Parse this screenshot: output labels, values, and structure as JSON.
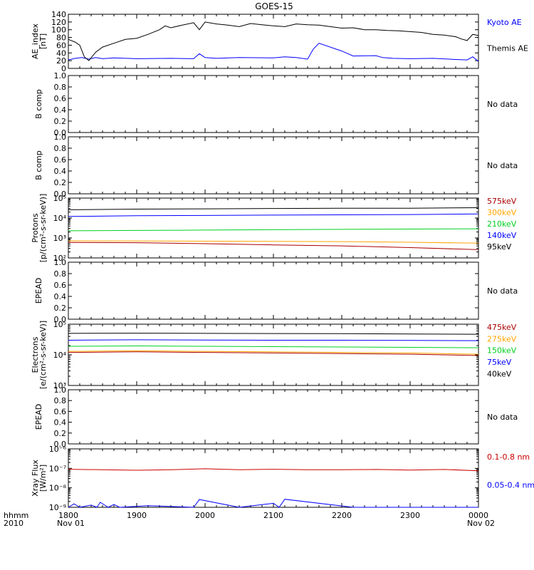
{
  "title": "GOES-15",
  "colors": {
    "black": "#000000",
    "blue": "#0000ff",
    "red": "#cc0000",
    "orange": "#ffa500",
    "green": "#00d020",
    "dark_red": "#aa0000"
  },
  "time_axis": {
    "ticks": [
      "1800",
      "1900",
      "2000",
      "2100",
      "2200",
      "2300",
      "0000"
    ],
    "minor_ticks_per_major": 6,
    "left_label_line1": "hhmm",
    "left_label_line2": "2010",
    "date_start": "Nov 01",
    "date_end": "Nov 02"
  },
  "chart_data": [
    {
      "type": "line",
      "panel": "ae",
      "ylabel": [
        "AE_index",
        "[nT]"
      ],
      "yscale": "linear",
      "ylim": [
        0,
        140
      ],
      "yticks": [
        "0",
        "20",
        "40",
        "60",
        "80",
        "100",
        "120",
        "140"
      ],
      "x_range": [
        "18:00 Nov 01",
        "00:00 Nov 02"
      ],
      "series": [
        {
          "name": "Kyoto AE",
          "color": "#0000ff",
          "x_minutes": [
            0,
            6,
            12,
            18,
            24,
            30,
            40,
            60,
            90,
            110,
            115,
            120,
            130,
            150,
            180,
            190,
            200,
            210,
            215,
            220,
            240,
            250,
            270,
            276,
            285,
            300,
            320,
            340,
            350,
            355,
            360
          ],
          "values": [
            22,
            26,
            28,
            24,
            28,
            25,
            27,
            25,
            26,
            25,
            38,
            28,
            26,
            28,
            27,
            30,
            28,
            24,
            50,
            65,
            45,
            32,
            33,
            28,
            26,
            25,
            26,
            23,
            22,
            30,
            18
          ]
        },
        {
          "name": "Themis AE",
          "color": "#000000",
          "x_minutes": [
            0,
            6,
            10,
            14,
            18,
            24,
            30,
            40,
            50,
            60,
            70,
            80,
            85,
            90,
            100,
            110,
            115,
            120,
            130,
            140,
            150,
            160,
            170,
            180,
            190,
            200,
            210,
            220,
            230,
            240,
            250,
            260,
            270,
            280,
            290,
            300,
            310,
            320,
            330,
            340,
            345,
            350,
            355,
            360
          ],
          "values": [
            75,
            68,
            60,
            30,
            20,
            42,
            55,
            65,
            75,
            78,
            88,
            100,
            110,
            105,
            112,
            118,
            100,
            120,
            115,
            112,
            108,
            116,
            113,
            110,
            108,
            115,
            113,
            112,
            108,
            104,
            105,
            100,
            100,
            98,
            97,
            95,
            93,
            88,
            86,
            82,
            76,
            72,
            88,
            85
          ]
        }
      ],
      "legend": [
        "Kyoto AE",
        "Themis AE"
      ]
    },
    {
      "type": "line",
      "panel": "bcomp1",
      "ylabel": [
        "B comp"
      ],
      "ylim": [
        0,
        1.0
      ],
      "yticks": [
        "0.0",
        "0.2",
        "0.4",
        "0.6",
        "0.8",
        "1.0"
      ],
      "status": "No data",
      "series": []
    },
    {
      "type": "line",
      "panel": "bcomp2",
      "ylabel": [
        "B comp"
      ],
      "ylim": [
        0,
        1.0
      ],
      "yticks": [
        "0.0",
        "0.2",
        "0.4",
        "0.6",
        "0.8",
        "1.0"
      ],
      "status": "No data",
      "series": []
    },
    {
      "type": "line",
      "panel": "protons",
      "ylabel": [
        "Protons",
        "[p/(cm²-s-sr-keV)]"
      ],
      "yscale": "log",
      "ylim": [
        100,
        100000
      ],
      "yticks": [
        "10²",
        "10³",
        "10⁴",
        "10⁵"
      ],
      "series": [
        {
          "name": "575keV",
          "color": "#aa0000",
          "x_minutes": [
            0,
            60,
            120,
            180,
            240,
            300,
            360
          ],
          "values": [
            600,
            580,
            520,
            450,
            400,
            330,
            260
          ]
        },
        {
          "name": "300keV",
          "color": "#ffa500",
          "x_minutes": [
            0,
            60,
            120,
            180,
            240,
            300,
            360
          ],
          "values": [
            720,
            700,
            690,
            680,
            660,
            610,
            550
          ]
        },
        {
          "name": "210keV",
          "color": "#00d020",
          "x_minutes": [
            0,
            60,
            120,
            180,
            240,
            300,
            360
          ],
          "values": [
            2300,
            2400,
            2500,
            2600,
            2700,
            2800,
            2900
          ]
        },
        {
          "name": "140keV",
          "color": "#0000ff",
          "x_minutes": [
            0,
            60,
            120,
            180,
            240,
            300,
            360
          ],
          "values": [
            12000,
            13000,
            13500,
            14000,
            14500,
            15000,
            16000
          ]
        },
        {
          "name": "95keV",
          "color": "#000000",
          "x_minutes": [
            0,
            60,
            120,
            180,
            240,
            300,
            360
          ],
          "values": [
            26000,
            28000,
            29000,
            30000,
            31000,
            31000,
            33000
          ]
        }
      ],
      "legend": [
        "575keV",
        "300keV",
        "210keV",
        "140keV",
        "95keV"
      ]
    },
    {
      "type": "line",
      "panel": "epead1",
      "ylabel": [
        "EPEAD"
      ],
      "ylim": [
        0,
        1.0
      ],
      "yticks": [
        "0.0",
        "0.2",
        "0.4",
        "0.6",
        "0.8",
        "1.0"
      ],
      "status": "No data",
      "series": []
    },
    {
      "type": "line",
      "panel": "electrons",
      "ylabel": [
        "Electrons",
        "[e/(cm²-s-sr-keV)]"
      ],
      "yscale": "log",
      "ylim": [
        1000,
        100000
      ],
      "yticks": [
        "10³",
        "10⁴",
        "10⁵"
      ],
      "series": [
        {
          "name": "475keV",
          "color": "#aa0000",
          "x_minutes": [
            0,
            60,
            120,
            180,
            240,
            300,
            360
          ],
          "values": [
            12000,
            12500,
            12000,
            11500,
            11000,
            10500,
            9500
          ]
        },
        {
          "name": "275keV",
          "color": "#ffa500",
          "x_minutes": [
            0,
            60,
            120,
            180,
            240,
            300,
            360
          ],
          "values": [
            13000,
            13500,
            13000,
            12500,
            12000,
            11500,
            10500
          ]
        },
        {
          "name": "150keV",
          "color": "#00d020",
          "x_minutes": [
            0,
            60,
            120,
            180,
            240,
            300,
            360
          ],
          "values": [
            19000,
            19500,
            19000,
            18500,
            18000,
            17500,
            17000
          ]
        },
        {
          "name": "75keV",
          "color": "#0000ff",
          "x_minutes": [
            0,
            60,
            120,
            180,
            240,
            300,
            360
          ],
          "values": [
            30000,
            31000,
            30500,
            30000,
            30000,
            29500,
            29000
          ]
        },
        {
          "name": "40keV",
          "color": "#000000",
          "x_minutes": [
            0,
            60,
            120,
            180,
            240,
            300,
            360
          ],
          "values": [
            50000,
            51000,
            50000,
            49500,
            49000,
            48000,
            47000
          ]
        }
      ],
      "legend": [
        "475keV",
        "275keV",
        "150keV",
        "75keV",
        "40keV"
      ]
    },
    {
      "type": "line",
      "panel": "epead2",
      "ylabel": [
        "EPEAD"
      ],
      "ylim": [
        0,
        1.0
      ],
      "yticks": [
        "0.0",
        "0.2",
        "0.4",
        "0.6",
        "0.8",
        "1.0"
      ],
      "status": "No data",
      "series": []
    },
    {
      "type": "line",
      "panel": "xray",
      "ylabel": [
        "Xray Flux",
        "[W/m²]"
      ],
      "yscale": "log",
      "ylim": [
        1e-09,
        1e-06
      ],
      "yticks": [
        "10⁻⁹",
        "10⁻⁸",
        "10⁻⁷",
        "10⁻⁶"
      ],
      "series": [
        {
          "name": "0.1-0.8 nm",
          "color": "#cc0000",
          "x_minutes": [
            0,
            30,
            60,
            90,
            120,
            150,
            180,
            210,
            240,
            270,
            300,
            330,
            360
          ],
          "values": [
            9e-08,
            8.5e-08,
            8e-08,
            8.5e-08,
            9.5e-08,
            8.5e-08,
            9e-08,
            8.5e-08,
            8.5e-08,
            8.8e-08,
            8.2e-08,
            8.8e-08,
            7.5e-08
          ]
        },
        {
          "name": "0.05-0.4 nm",
          "color": "#0000ff",
          "x_minutes": [
            0,
            5,
            10,
            20,
            25,
            28,
            35,
            40,
            45,
            70,
            110,
            115,
            150,
            180,
            185,
            190,
            250,
            360
          ],
          "values": [
            1e-09,
            1.5e-09,
            1e-09,
            1.3e-09,
            1e-09,
            1.8e-09,
            1e-09,
            1.4e-09,
            1e-09,
            1.2e-09,
            1e-09,
            2.5e-09,
            1e-09,
            1.6e-09,
            1e-09,
            2.6e-09,
            1e-09,
            1e-09
          ]
        }
      ],
      "legend": [
        "0.1-0.8 nm",
        "0.05-0.4 nm"
      ]
    }
  ]
}
